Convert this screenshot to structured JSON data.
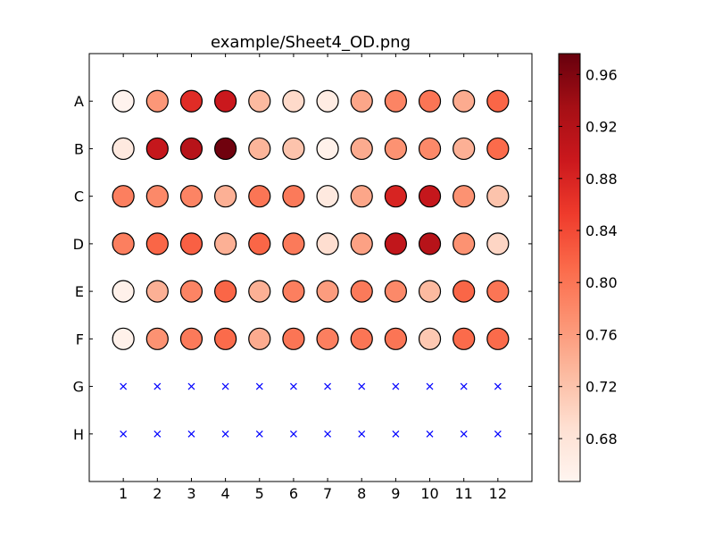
{
  "chart_data": {
    "type": "scatter",
    "title": "example/Sheet4_OD.png",
    "xlabel": "",
    "ylabel": "",
    "columns": [
      "1",
      "2",
      "3",
      "4",
      "5",
      "6",
      "7",
      "8",
      "9",
      "10",
      "11",
      "12"
    ],
    "rows": [
      "A",
      "B",
      "C",
      "D",
      "E",
      "F",
      "G",
      "H"
    ],
    "xlim": [
      0,
      13
    ],
    "ylim": [
      0,
      9
    ],
    "grid": false,
    "colormap": "Reds",
    "color_range": [
      0.647,
      0.976
    ],
    "colorbar_ticks": [
      "0.68",
      "0.72",
      "0.76",
      "0.80",
      "0.84",
      "0.88",
      "0.92",
      "0.96"
    ],
    "missing_marker": "x",
    "missing_color": "#0000ff",
    "values": [
      [
        0.65,
        0.765,
        0.87,
        0.895,
        0.73,
        0.695,
        0.665,
        0.75,
        0.785,
        0.8,
        0.745,
        0.815
      ],
      [
        0.67,
        0.9,
        0.915,
        0.97,
        0.735,
        0.72,
        0.655,
        0.745,
        0.77,
        0.78,
        0.74,
        0.81
      ],
      [
        0.79,
        0.78,
        0.785,
        0.74,
        0.8,
        0.795,
        0.67,
        0.75,
        0.88,
        0.9,
        0.77,
        0.72
      ],
      [
        0.79,
        0.815,
        0.82,
        0.74,
        0.815,
        0.795,
        0.69,
        0.755,
        0.905,
        0.915,
        0.77,
        0.7
      ],
      [
        0.655,
        0.74,
        0.785,
        0.815,
        0.74,
        0.79,
        0.76,
        0.795,
        0.78,
        0.73,
        0.815,
        0.8
      ],
      [
        0.655,
        0.77,
        0.795,
        0.81,
        0.745,
        0.8,
        0.79,
        0.8,
        0.8,
        0.715,
        0.81,
        0.81
      ],
      [
        null,
        null,
        null,
        null,
        null,
        null,
        null,
        null,
        null,
        null,
        null,
        null
      ],
      [
        null,
        null,
        null,
        null,
        null,
        null,
        null,
        null,
        null,
        null,
        null,
        null
      ]
    ]
  }
}
